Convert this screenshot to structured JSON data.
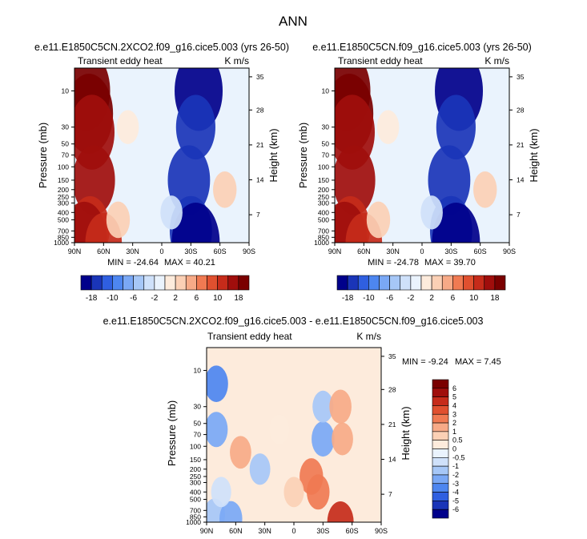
{
  "page_title": "ANN",
  "chart_data": [
    {
      "type": "heatmap",
      "title": "e.e11.E1850C5CN.2XCO2.f09_g16.cice5.003 (yrs 26-50)",
      "subtitle_left": "Transient eddy heat",
      "subtitle_right": "K m/s",
      "ylabel": "Pressure (mb)",
      "ylabel_right": "Height (km)",
      "x_ticks": [
        "90N",
        "60N",
        "30N",
        "0",
        "30S",
        "60S",
        "90S"
      ],
      "y_ticks": [
        "10",
        "30",
        "50",
        "70",
        "100",
        "150",
        "200",
        "250",
        "300",
        "400",
        "500",
        "700",
        "850",
        "1000"
      ],
      "height_ticks": [
        "35",
        "28",
        "21",
        "14",
        "7"
      ],
      "min_label": "MIN = -24.64",
      "max_label": "MAX = 40.21",
      "colorbar": {
        "orientation": "horizontal",
        "labels": [
          "-18",
          "-10",
          "-6",
          "-2",
          "2",
          "6",
          "10",
          "18"
        ],
        "colors": [
          "#00008b",
          "#1a35b8",
          "#2f5fe0",
          "#4d86f0",
          "#7aa8f5",
          "#a6c7f7",
          "#cfe1fa",
          "#eaf3fd",
          "#fdebdc",
          "#fbd0b5",
          "#f7aa87",
          "#f07a52",
          "#e0502f",
          "#c62b1a",
          "#a00e0c",
          "#7a0000"
        ]
      },
      "fields": [
        {
          "x": 12,
          "y": 10,
          "value": 40
        },
        {
          "x": 15,
          "y": 20,
          "value": 30
        },
        {
          "x": 18,
          "y": 35,
          "value": 18
        },
        {
          "x": 20,
          "y": 150,
          "value": 16
        },
        {
          "x": 16,
          "y": 650,
          "value": 14
        },
        {
          "x": 10,
          "y": 900,
          "value": 18
        },
        {
          "x": 30,
          "y": 1000,
          "value": 12
        },
        {
          "x": 45,
          "y": 500,
          "value": 3
        },
        {
          "x": 55,
          "y": 30,
          "value": 2
        },
        {
          "x": 128,
          "y": 10,
          "value": -24
        },
        {
          "x": 125,
          "y": 30,
          "value": -14
        },
        {
          "x": 118,
          "y": 150,
          "value": -16
        },
        {
          "x": 120,
          "y": 700,
          "value": -16
        },
        {
          "x": 125,
          "y": 1000,
          "value": -24
        },
        {
          "x": 155,
          "y": 200,
          "value": 3
        },
        {
          "x": 100,
          "y": 400,
          "value": -2
        }
      ]
    },
    {
      "type": "heatmap",
      "title": "e.e11.E1850C5CN.f09_g16.cice5.003 (yrs 26-50)",
      "subtitle_left": "Transient eddy heat",
      "subtitle_right": "K m/s",
      "ylabel": "Pressure (mb)",
      "ylabel_right": "Height (km)",
      "x_ticks": [
        "90N",
        "60N",
        "30N",
        "0",
        "30S",
        "60S",
        "90S"
      ],
      "y_ticks": [
        "10",
        "30",
        "50",
        "70",
        "100",
        "150",
        "200",
        "250",
        "300",
        "400",
        "500",
        "700",
        "850",
        "1000"
      ],
      "height_ticks": [
        "35",
        "28",
        "21",
        "14",
        "7"
      ],
      "min_label": "MIN = -24.78",
      "max_label": "MAX = 39.70",
      "colorbar": {
        "orientation": "horizontal",
        "labels": [
          "-18",
          "-10",
          "-6",
          "-2",
          "2",
          "6",
          "10",
          "18"
        ],
        "colors": [
          "#00008b",
          "#1a35b8",
          "#2f5fe0",
          "#4d86f0",
          "#7aa8f5",
          "#a6c7f7",
          "#cfe1fa",
          "#eaf3fd",
          "#fdebdc",
          "#fbd0b5",
          "#f7aa87",
          "#f07a52",
          "#e0502f",
          "#c62b1a",
          "#a00e0c",
          "#7a0000"
        ]
      },
      "fields": [
        {
          "x": 12,
          "y": 10,
          "value": 39
        },
        {
          "x": 15,
          "y": 20,
          "value": 30
        },
        {
          "x": 18,
          "y": 35,
          "value": 18
        },
        {
          "x": 20,
          "y": 150,
          "value": 16
        },
        {
          "x": 16,
          "y": 650,
          "value": 14
        },
        {
          "x": 10,
          "y": 900,
          "value": 18
        },
        {
          "x": 30,
          "y": 1000,
          "value": 12
        },
        {
          "x": 45,
          "y": 500,
          "value": 3
        },
        {
          "x": 55,
          "y": 30,
          "value": 2
        },
        {
          "x": 128,
          "y": 10,
          "value": -24
        },
        {
          "x": 125,
          "y": 30,
          "value": -14
        },
        {
          "x": 118,
          "y": 150,
          "value": -16
        },
        {
          "x": 120,
          "y": 700,
          "value": -16
        },
        {
          "x": 125,
          "y": 1000,
          "value": -24
        },
        {
          "x": 155,
          "y": 200,
          "value": 3
        },
        {
          "x": 100,
          "y": 400,
          "value": -2
        }
      ]
    },
    {
      "type": "heatmap",
      "title": "e.e11.E1850C5CN.2XCO2.f09_g16.cice5.003 - e.e11.E1850C5CN.f09_g16.cice5.003",
      "subtitle_left": "Transient eddy heat",
      "subtitle_right": "K m/s",
      "ylabel": "Pressure (mb)",
      "ylabel_right": "Height (km)",
      "x_ticks": [
        "90N",
        "60N",
        "30N",
        "0",
        "30S",
        "60S",
        "90S"
      ],
      "y_ticks": [
        "10",
        "30",
        "50",
        "70",
        "100",
        "150",
        "200",
        "250",
        "300",
        "400",
        "500",
        "700",
        "850",
        "1000"
      ],
      "height_ticks": [
        "35",
        "28",
        "21",
        "14",
        "7"
      ],
      "min_label": "MIN = -9.24",
      "max_label": "MAX =  7.45",
      "colorbar": {
        "orientation": "vertical",
        "labels": [
          "6",
          "5",
          "4",
          "3",
          "2",
          "1",
          "0.5",
          "0",
          "-0.5",
          "-1",
          "-2",
          "-3",
          "-4",
          "-5",
          "-6"
        ],
        "colors": [
          "#7a0000",
          "#a00e0c",
          "#c62b1a",
          "#e0502f",
          "#f07a52",
          "#f7aa87",
          "#fbd0b5",
          "#fdebdc",
          "#eaf3fd",
          "#cfe1fa",
          "#a6c7f7",
          "#7aa8f5",
          "#4d86f0",
          "#2f5fe0",
          "#1a35b8",
          "#00008b"
        ]
      },
      "fields": [
        {
          "x": 10,
          "y": 15,
          "value": -3
        },
        {
          "x": 10,
          "y": 60,
          "value": -2.5
        },
        {
          "x": 8,
          "y": 800,
          "value": -1.5
        },
        {
          "x": 25,
          "y": 900,
          "value": -2.5
        },
        {
          "x": 35,
          "y": 120,
          "value": 1.5
        },
        {
          "x": 55,
          "y": 200,
          "value": -1
        },
        {
          "x": 15,
          "y": 400,
          "value": -0.6
        },
        {
          "x": 120,
          "y": 80,
          "value": -2.5
        },
        {
          "x": 120,
          "y": 30,
          "value": -1.2
        },
        {
          "x": 138,
          "y": 30,
          "value": 2
        },
        {
          "x": 140,
          "y": 80,
          "value": 1.5
        },
        {
          "x": 115,
          "y": 400,
          "value": 2.5
        },
        {
          "x": 108,
          "y": 250,
          "value": 3
        },
        {
          "x": 138,
          "y": 1000,
          "value": 5
        },
        {
          "x": 90,
          "y": 400,
          "value": 0.6
        },
        {
          "x": 75,
          "y": 60,
          "value": 0.4
        }
      ]
    }
  ]
}
